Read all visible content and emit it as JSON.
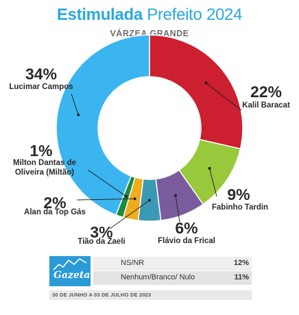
{
  "header": {
    "title_bold": "Estimulada",
    "title_rest": "Prefeito 2024",
    "subtitle": "VÁRZEA GRANDE"
  },
  "chart_data": {
    "type": "pie",
    "variant": "donut",
    "title": "Estimulada Prefeito 2024",
    "subtitle": "VÁRZEA GRANDE",
    "slices": [
      {
        "label": "Lucimar Campos",
        "value": 34,
        "value_text": "34%",
        "color": "#3bb5ef"
      },
      {
        "label": "Kalil Baracat",
        "value": 22,
        "value_text": "22%",
        "color": "#cc1f2f"
      },
      {
        "label": "Fabinho Tardin",
        "value": 9,
        "value_text": "9%",
        "color": "#98c93c"
      },
      {
        "label": "Flávio da Frical",
        "value": 6,
        "value_text": "6%",
        "color": "#7a5c9e"
      },
      {
        "label": "Tião da Zaeli",
        "value": 3,
        "value_text": "3%",
        "color": "#3a9ab5"
      },
      {
        "label": "Alan da Top Gás",
        "value": 2,
        "value_text": "2%",
        "color": "#f0ac1c"
      },
      {
        "label": "Milton Dantas de Oliveira (Miltão)",
        "value": 1,
        "value_text": "1%",
        "color": "#1d8a3c"
      }
    ],
    "extra": [
      {
        "label": "NS/NR",
        "value": 12,
        "value_text": "12%"
      },
      {
        "label": "Nenhum/Branco/ Nulo",
        "value": 11,
        "value_text": "11%"
      }
    ]
  },
  "labels": {
    "milton_line1": "Milton Dantas de",
    "milton_line2": "Oliveira (Miltão)"
  },
  "footer": {
    "logo_text": "Gazeta",
    "date_text": "30 DE JUNHO A 03 DE JULHO DE 2023"
  }
}
